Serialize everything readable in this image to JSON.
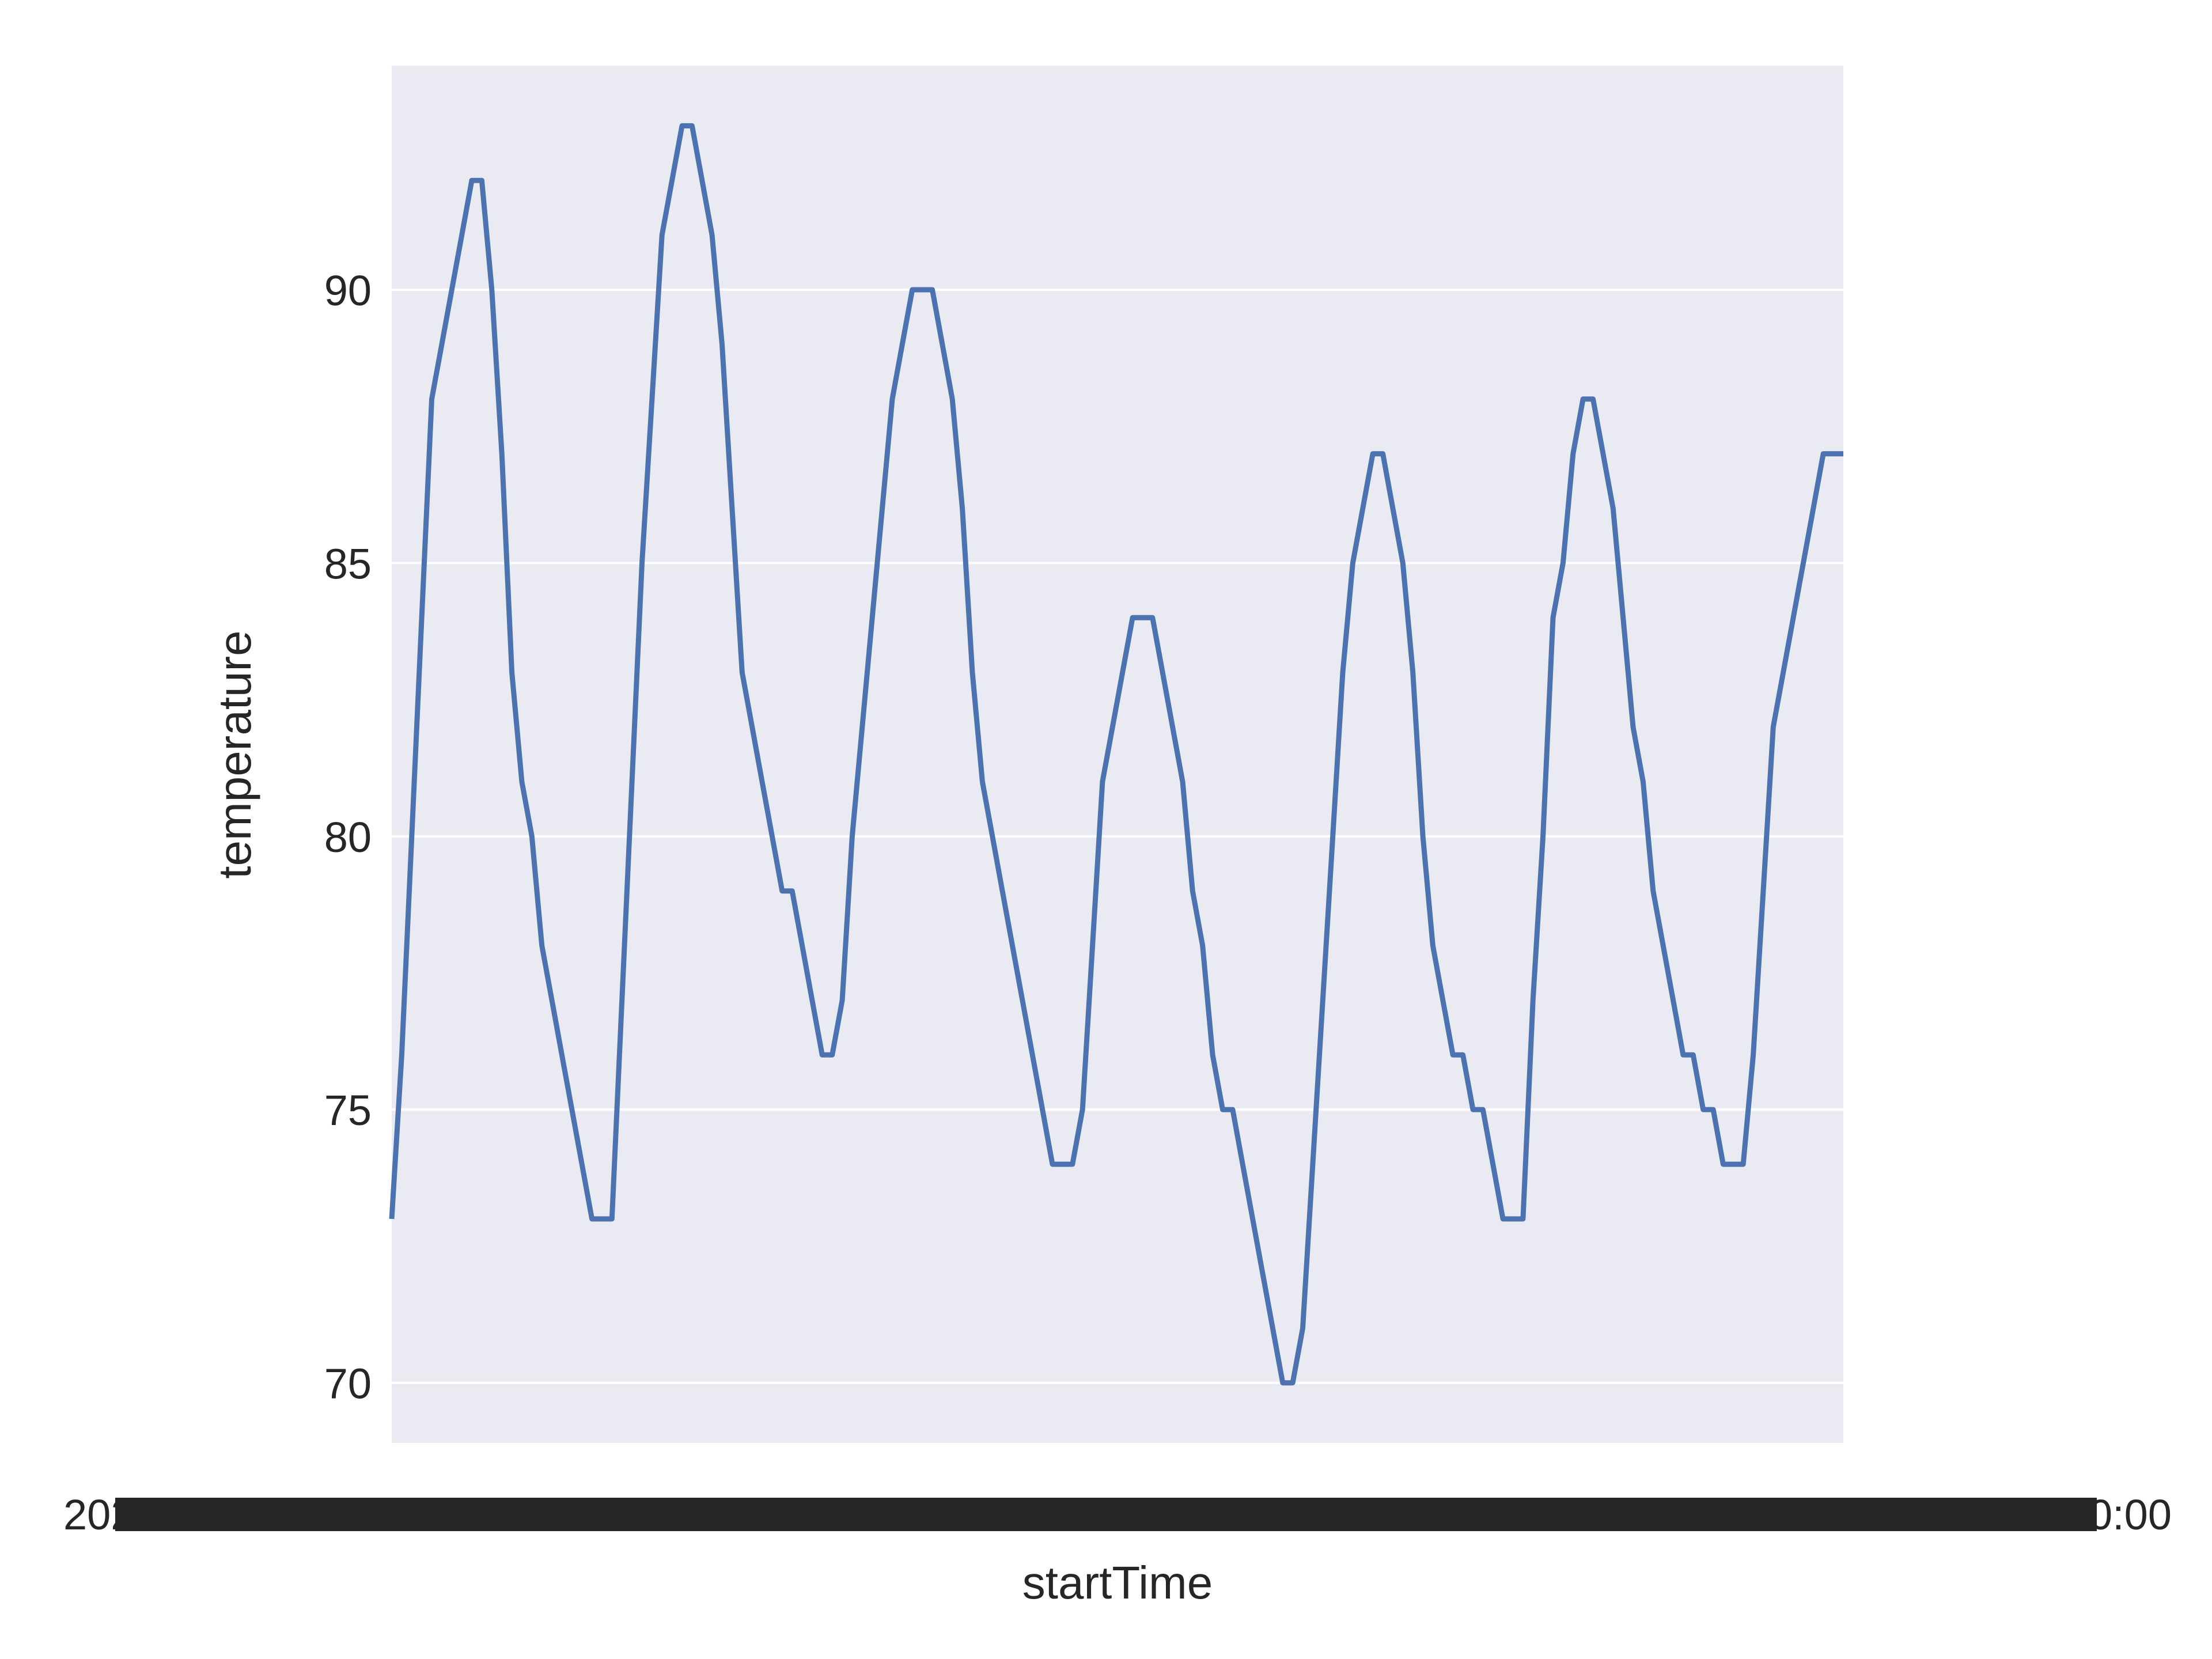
{
  "chart_data": {
    "type": "line",
    "title": "",
    "xlabel": "startTime",
    "ylabel": "temperature",
    "ylim": [
      68.9,
      94.1
    ],
    "yticks": [
      70,
      75,
      80,
      85,
      90
    ],
    "grid": true,
    "grid_axis": "y",
    "x_tick_labels_overlapping": true,
    "x_tick_label_texts_visible": [
      "2022-",
      "2022-",
      "2022-",
      "2022-",
      "2022-",
      "2022-",
      "0:00:00",
      "0:00:00"
    ],
    "series": [
      {
        "name": "",
        "color": "#4c72b0",
        "values": [
          73,
          76,
          80,
          84,
          88,
          89,
          90,
          91,
          92,
          92,
          90,
          87,
          83,
          81,
          80,
          78,
          77,
          76,
          75,
          74,
          73,
          73,
          73,
          77,
          81,
          85,
          88,
          91,
          92,
          93,
          93,
          92,
          91,
          89,
          86,
          83,
          82,
          81,
          80,
          79,
          79,
          78,
          77,
          76,
          76,
          77,
          80,
          82,
          84,
          86,
          88,
          89,
          90,
          90,
          90,
          89,
          88,
          86,
          83,
          81,
          80,
          79,
          78,
          77,
          76,
          75,
          74,
          74,
          74,
          75,
          78,
          81,
          82,
          83,
          84,
          84,
          84,
          83,
          82,
          81,
          79,
          78,
          76,
          75,
          75,
          74,
          73,
          72,
          71,
          70,
          70,
          71,
          74,
          77,
          80,
          83,
          85,
          86,
          87,
          87,
          86,
          85,
          83,
          80,
          78,
          77,
          76,
          76,
          75,
          75,
          74,
          73,
          73,
          73,
          77,
          80,
          84,
          85,
          87,
          88,
          88,
          87,
          86,
          84,
          82,
          81,
          79,
          78,
          77,
          76,
          76,
          75,
          75,
          74,
          74,
          74,
          76,
          79,
          82,
          83,
          84,
          85,
          86,
          87,
          87,
          87
        ]
      }
    ],
    "background_color": "#eaeaf2",
    "grid_color": "#ffffff",
    "text_color": "#262626"
  }
}
